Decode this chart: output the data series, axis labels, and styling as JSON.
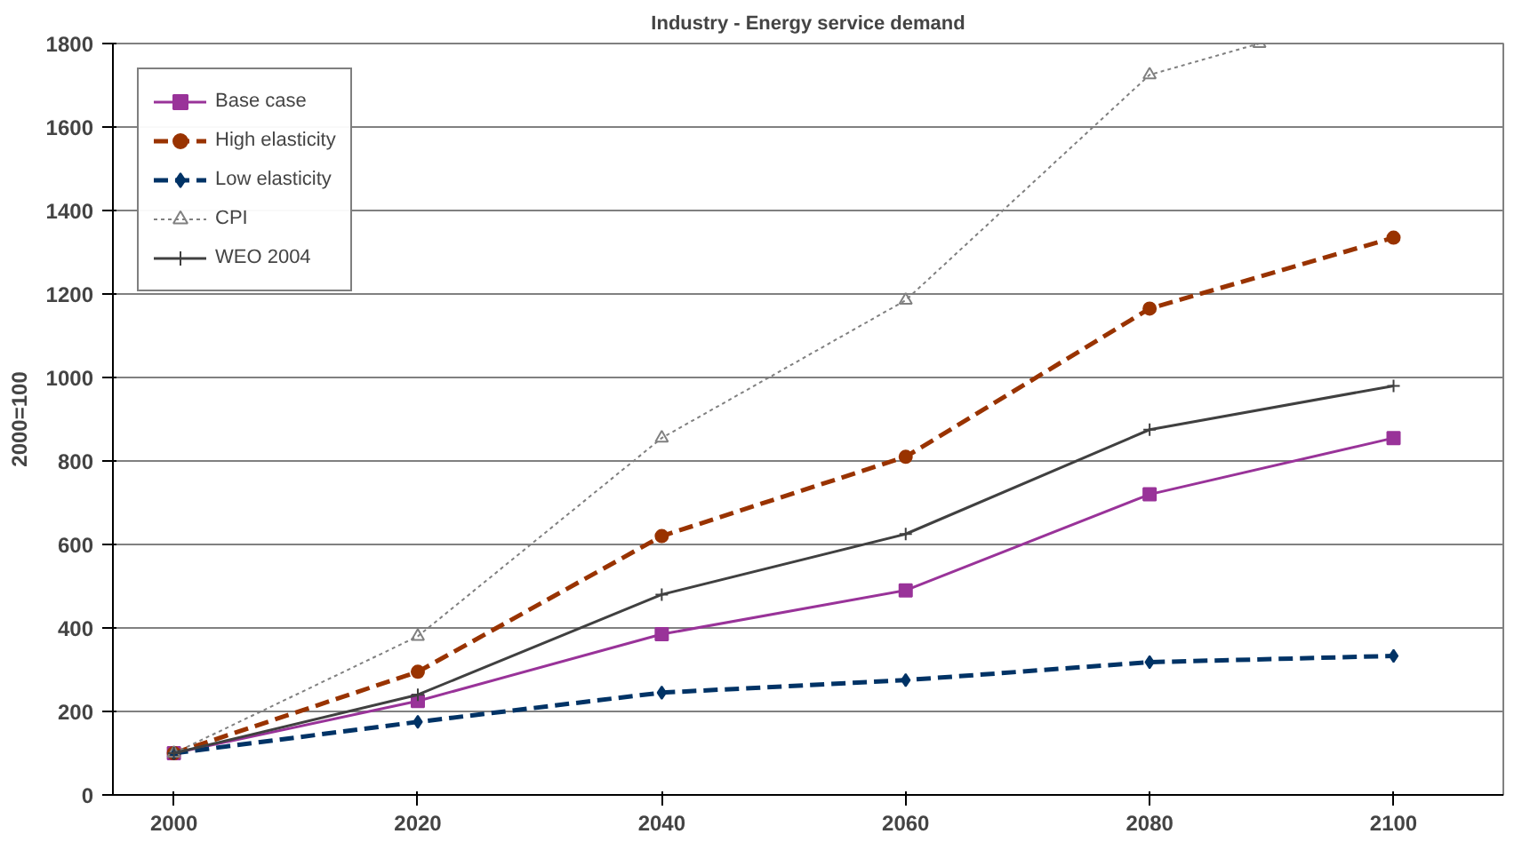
{
  "chart_data": {
    "type": "line",
    "title": "Industry - Energy service demand",
    "ylabel": "2000=100",
    "x": [
      2000,
      2020,
      2040,
      2060,
      2080,
      2100
    ],
    "xlim": [
      1995,
      2109
    ],
    "xticks": [
      2000,
      2020,
      2040,
      2060,
      2080,
      2100
    ],
    "ylim": [
      0,
      1800
    ],
    "yticks": [
      0,
      200,
      400,
      600,
      800,
      1000,
      1200,
      1400,
      1600,
      1800
    ],
    "grid": "y",
    "legend": "top left",
    "series": [
      {
        "name": "Base case",
        "color": "#993399",
        "marker": "square",
        "line_style": "solid",
        "values": [
          100,
          225,
          385,
          490,
          720,
          855
        ]
      },
      {
        "name": "High elasticity",
        "color": "#993300",
        "marker": "circle",
        "line_style": "dashed",
        "values": [
          100,
          295,
          620,
          810,
          1165,
          1335
        ]
      },
      {
        "name": "Low elasticity",
        "color": "#003366",
        "marker": "diamond",
        "line_style": "dashed",
        "values": [
          100,
          175,
          245,
          275,
          318,
          333
        ]
      },
      {
        "name": "CPI",
        "color": "#808080",
        "marker": "triangle",
        "line_style": "dotted",
        "x": [
          2000,
          2020,
          2040,
          2060,
          2080,
          2089
        ],
        "values": [
          100,
          380,
          855,
          1185,
          1725,
          1800
        ]
      },
      {
        "name": "WEO 2004",
        "color": "#404040",
        "marker": "cross",
        "line_style": "solid",
        "values": [
          100,
          240,
          480,
          625,
          875,
          980
        ]
      }
    ]
  }
}
